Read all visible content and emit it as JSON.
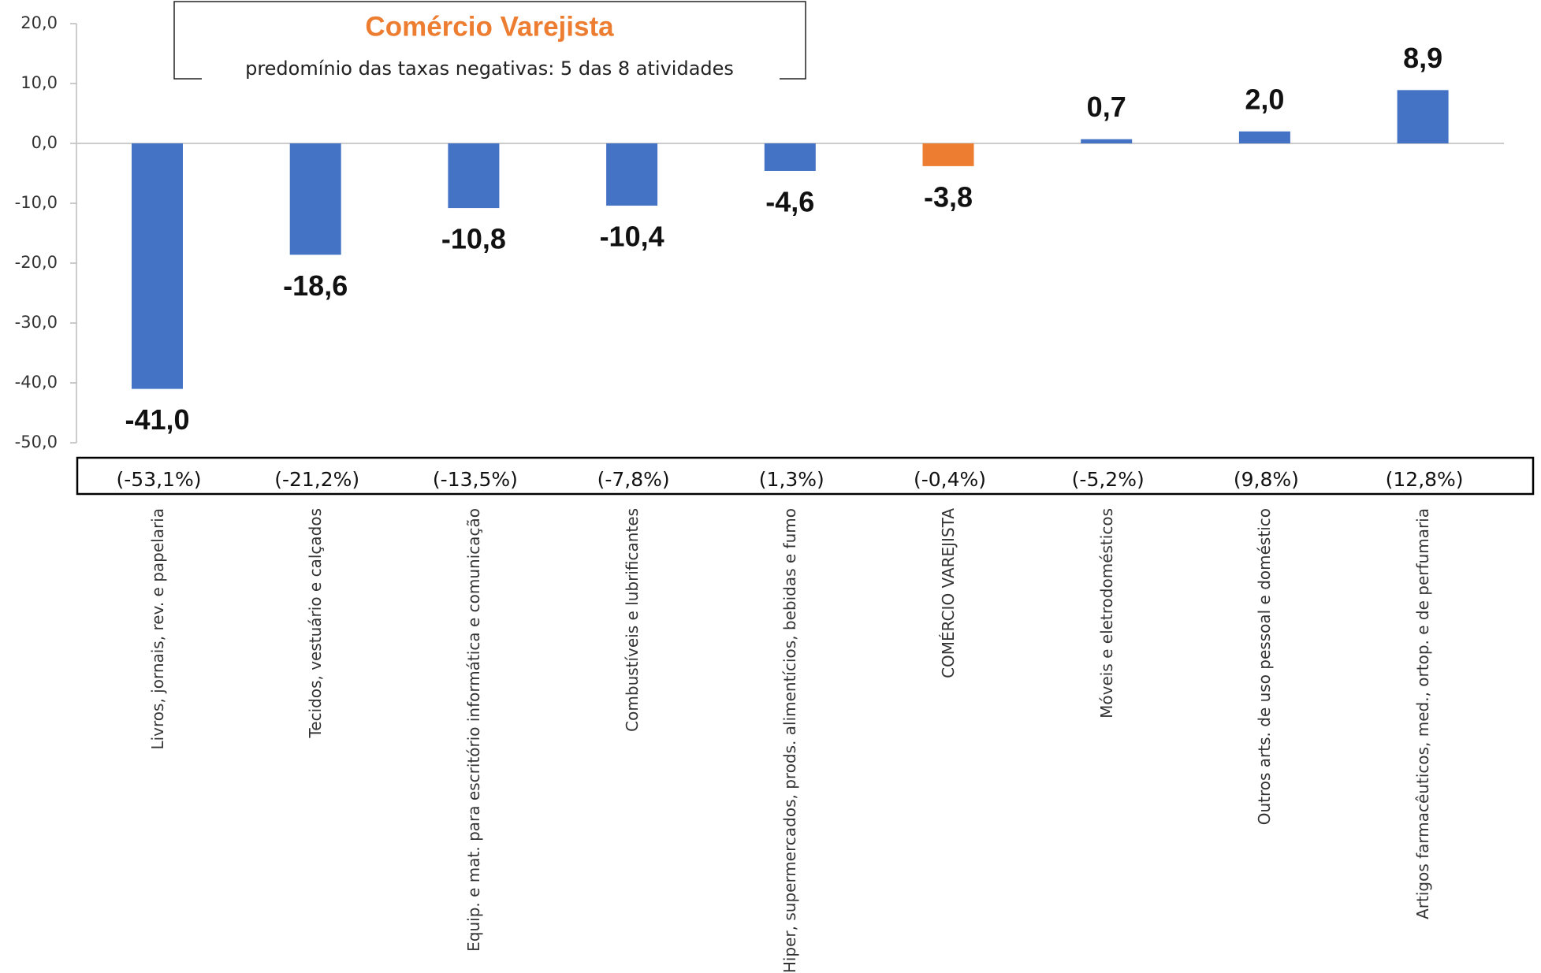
{
  "chart_data": {
    "type": "bar",
    "title": "Comércio Varejista",
    "subtitle": "predomínio das taxas negativas: 5 das 8 atividades",
    "categories": [
      "Livros, jornais, rev. e papelaria",
      "Tecidos, vestuário e calçados",
      "Equip. e mat. para escritório informática e comunicação",
      "Combustíveis e lubrificantes",
      "Hiper, supermercados, prods.  alimentícios, bebidas e fumo",
      "COMÉRCIO VAREJISTA",
      "Móveis e eletrodomésticos",
      "Outros arts. de uso pessoal e doméstico",
      "Artigos farmacêuticos, med., ortop. e de perfumaria"
    ],
    "values": [
      -41.0,
      -18.6,
      -10.8,
      -10.4,
      -4.6,
      -3.8,
      0.7,
      2.0,
      8.9
    ],
    "value_labels": [
      "-41,0",
      "-18,6",
      "-10,8",
      "-10,4",
      "-4,6",
      "-3,8",
      "0,7",
      "2,0",
      "8,9"
    ],
    "colors": [
      "#4472c4",
      "#4472c4",
      "#4472c4",
      "#4472c4",
      "#4472c4",
      "#ed7d31",
      "#4472c4",
      "#4472c4",
      "#4472c4"
    ],
    "rates": [
      "(-53,1%)",
      "(-21,2%)",
      "(-13,5%)",
      "(-7,8%)",
      "(1,3%)",
      "(-0,4%)",
      "(-5,2%)",
      "(9,8%)",
      "(12,8%)"
    ],
    "ylim": [
      -50,
      20
    ],
    "yticks": [
      {
        "value": -50,
        "label": "-50,0"
      },
      {
        "value": -40,
        "label": "-40,0"
      },
      {
        "value": -30,
        "label": "-30,0"
      },
      {
        "value": -20,
        "label": "-20,0"
      },
      {
        "value": -10,
        "label": "-10,0"
      },
      {
        "value": 0,
        "label": "0,0"
      },
      {
        "value": 10,
        "label": "10,0"
      },
      {
        "value": 20,
        "label": "20,0"
      }
    ]
  }
}
